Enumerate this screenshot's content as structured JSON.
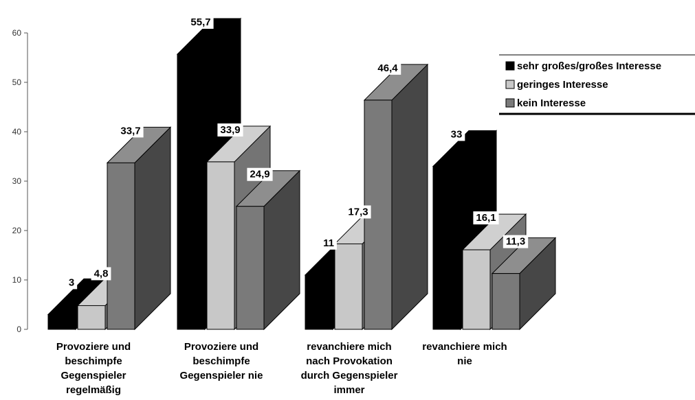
{
  "chart_data": {
    "type": "bar",
    "title": "",
    "xlabel": "",
    "ylabel": "",
    "ylim": [
      0,
      60
    ],
    "yticks": [
      "0",
      "10",
      "20",
      "30",
      "40",
      "50",
      "60"
    ],
    "categories": [
      [
        "Provoziere und",
        "beschimpfe",
        "Gegenspieler",
        "regelmäßig"
      ],
      [
        "Provoziere und",
        "beschimpfe",
        "Gegenspieler nie"
      ],
      [
        "revanchiere mich",
        "nach Provokation",
        "durch Gegenspieler",
        "immer"
      ],
      [
        "revanchiere mich",
        "nie"
      ]
    ],
    "series": [
      {
        "name": "sehr großes/großes Interesse",
        "color": "#000000",
        "values": [
          3,
          55.7,
          11,
          33
        ],
        "labels": [
          "3",
          "55,7",
          "11",
          "33"
        ]
      },
      {
        "name": "geringes Interesse",
        "color": "#c8c8c8",
        "values": [
          4.8,
          33.9,
          17.3,
          16.1
        ],
        "labels": [
          "4,8",
          "33,9",
          "17,3",
          "16,1"
        ]
      },
      {
        "name": "kein Interesse",
        "color": "#7a7a7a",
        "values": [
          33.7,
          24.9,
          46.4,
          11.3
        ],
        "labels": [
          "33,7",
          "24,9",
          "46,4",
          "11,3"
        ]
      }
    ],
    "legend_position": "top-right",
    "grid": false,
    "style": "3d"
  }
}
